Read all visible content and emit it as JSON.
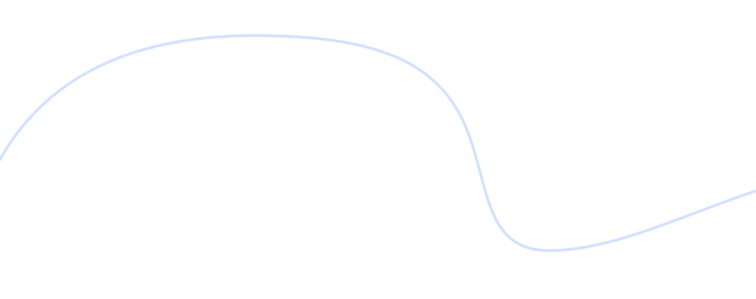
{
  "background": {
    "color": "#ffffff"
  },
  "decoration": {
    "type": "wave-line",
    "stroke_color": "#d3e2fd"
  }
}
